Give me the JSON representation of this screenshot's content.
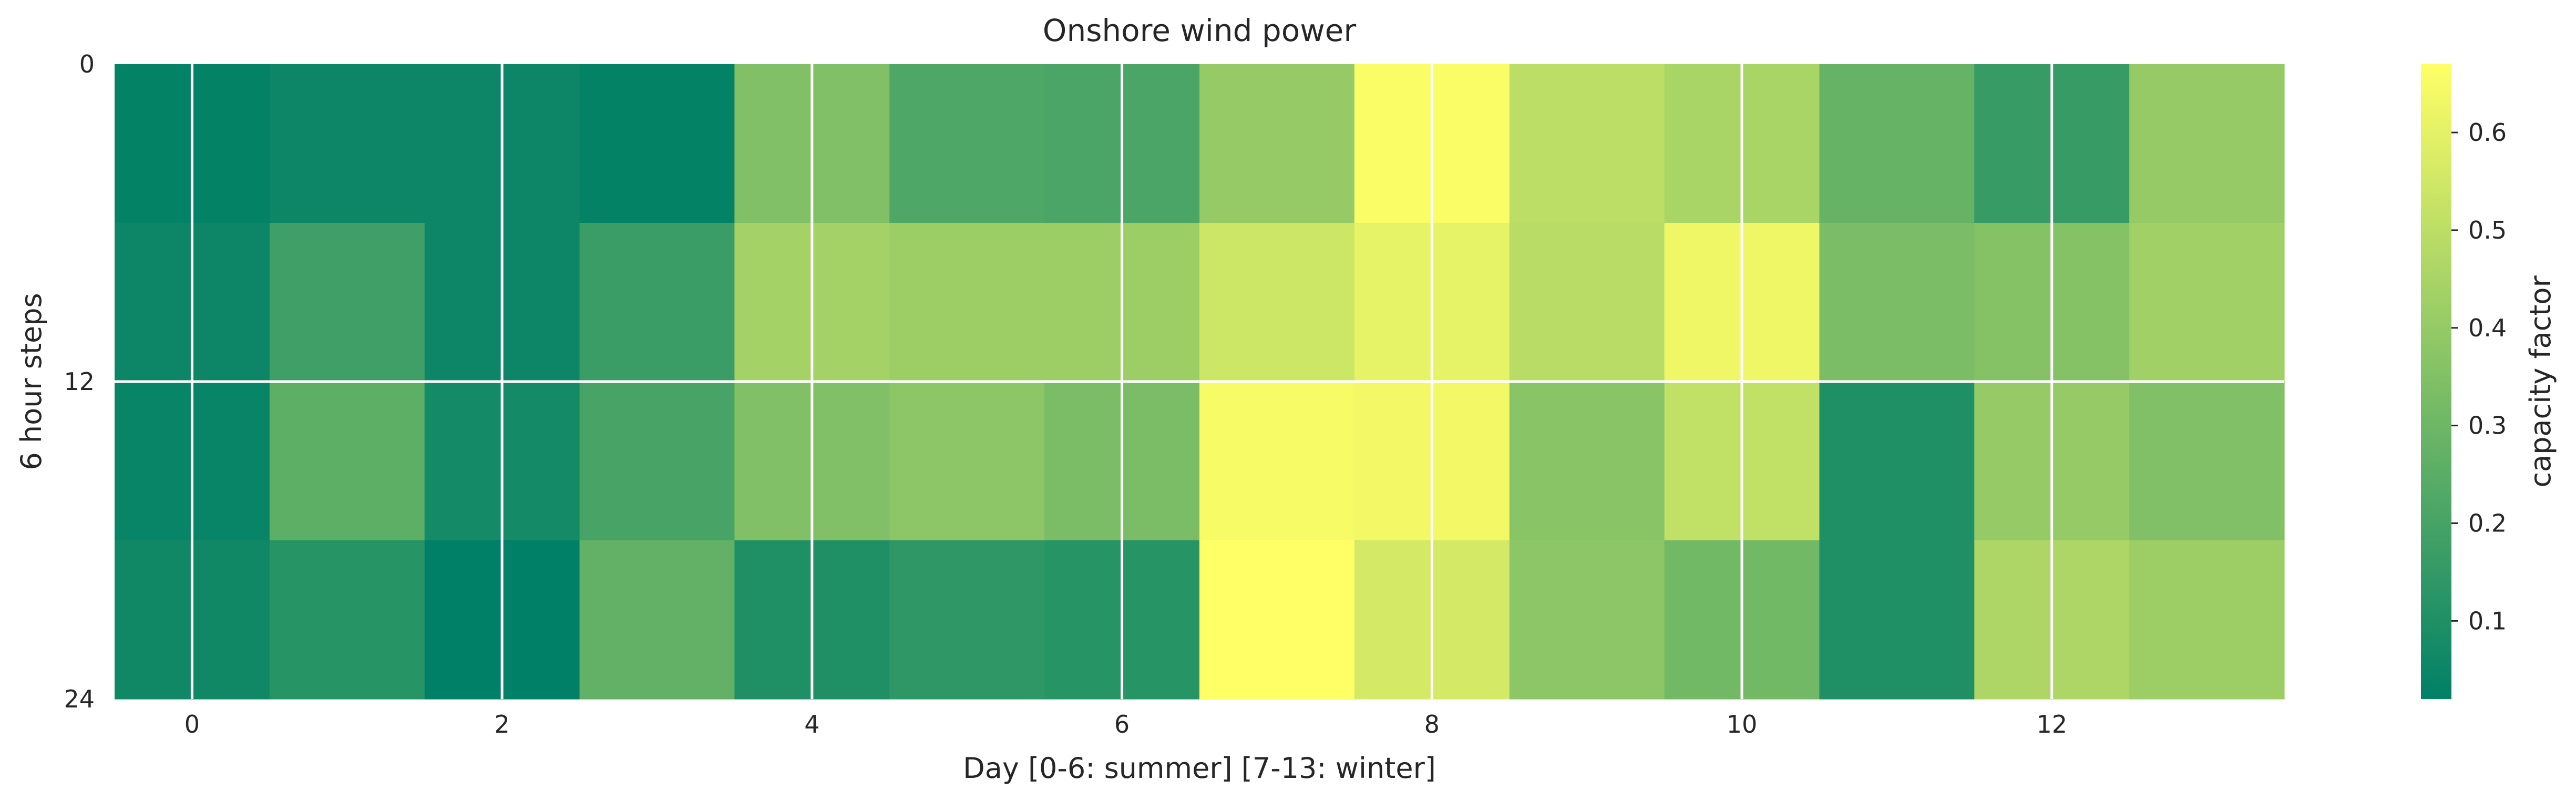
{
  "chart_data": {
    "type": "heatmap",
    "title": "Onshore wind power",
    "xlabel": "Day [0-6: summer] [7-13: winter]",
    "ylabel": "6 hour steps",
    "x_ticks": [
      "0",
      "2",
      "4",
      "6",
      "8",
      "10",
      "12"
    ],
    "y_ticks": [
      "0",
      "12",
      "24"
    ],
    "colorbar": {
      "label": "capacity factor",
      "ticks": [
        "0.1",
        "0.2",
        "0.3",
        "0.4",
        "0.5",
        "0.6"
      ],
      "range": [
        0.02,
        0.67
      ],
      "colormap": "summer_r",
      "colors": [
        "#008066",
        "#ffff66"
      ]
    },
    "x": [
      0,
      1,
      2,
      3,
      4,
      5,
      6,
      7,
      8,
      9,
      10,
      11,
      12,
      13
    ],
    "y_steps": [
      0,
      6,
      12,
      18
    ],
    "values": [
      [
        0.03,
        0.05,
        0.05,
        0.03,
        0.35,
        0.22,
        0.21,
        0.4,
        0.66,
        0.5,
        0.45,
        0.28,
        0.16,
        0.4
      ],
      [
        0.05,
        0.18,
        0.05,
        0.17,
        0.44,
        0.42,
        0.42,
        0.54,
        0.61,
        0.49,
        0.63,
        0.33,
        0.36,
        0.43
      ],
      [
        0.04,
        0.26,
        0.07,
        0.2,
        0.35,
        0.38,
        0.33,
        0.65,
        0.64,
        0.37,
        0.51,
        0.1,
        0.4,
        0.35
      ],
      [
        0.06,
        0.12,
        0.02,
        0.27,
        0.1,
        0.14,
        0.12,
        0.67,
        0.56,
        0.38,
        0.31,
        0.1,
        0.46,
        0.42
      ]
    ]
  }
}
